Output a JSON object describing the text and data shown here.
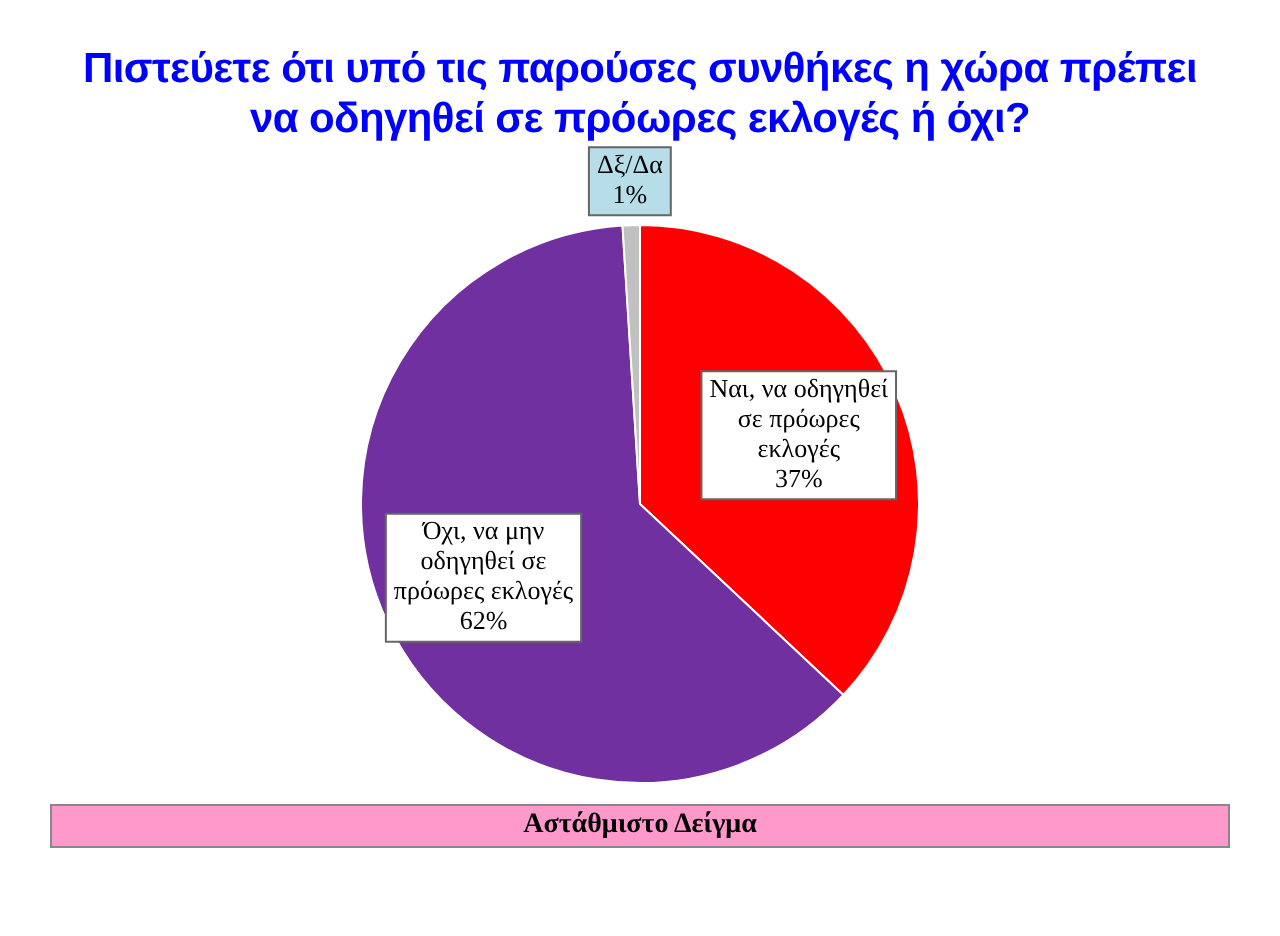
{
  "chart_data": {
    "type": "pie",
    "title": "Πιστεύετε ότι υπό τις παρούσες συνθήκες η χώρα πρέπει να οδηγηθεί σε πρόωρες εκλογές ή όχι?",
    "categories": [
      "Ναι, να οδηγηθεί σε πρόωρες εκλογές",
      "Όχι, να μην οδηγηθεί σε πρόωρες εκλογές",
      "Δξ/Δα"
    ],
    "values": [
      37,
      62,
      1
    ],
    "colors": [
      "#ff0000",
      "#7030a0",
      "#c0c0c0"
    ],
    "value_labels": [
      "37%",
      "62%",
      "1%"
    ],
    "legend": false,
    "annotations": [
      "Αστάθμιστο Δείγμα"
    ]
  }
}
